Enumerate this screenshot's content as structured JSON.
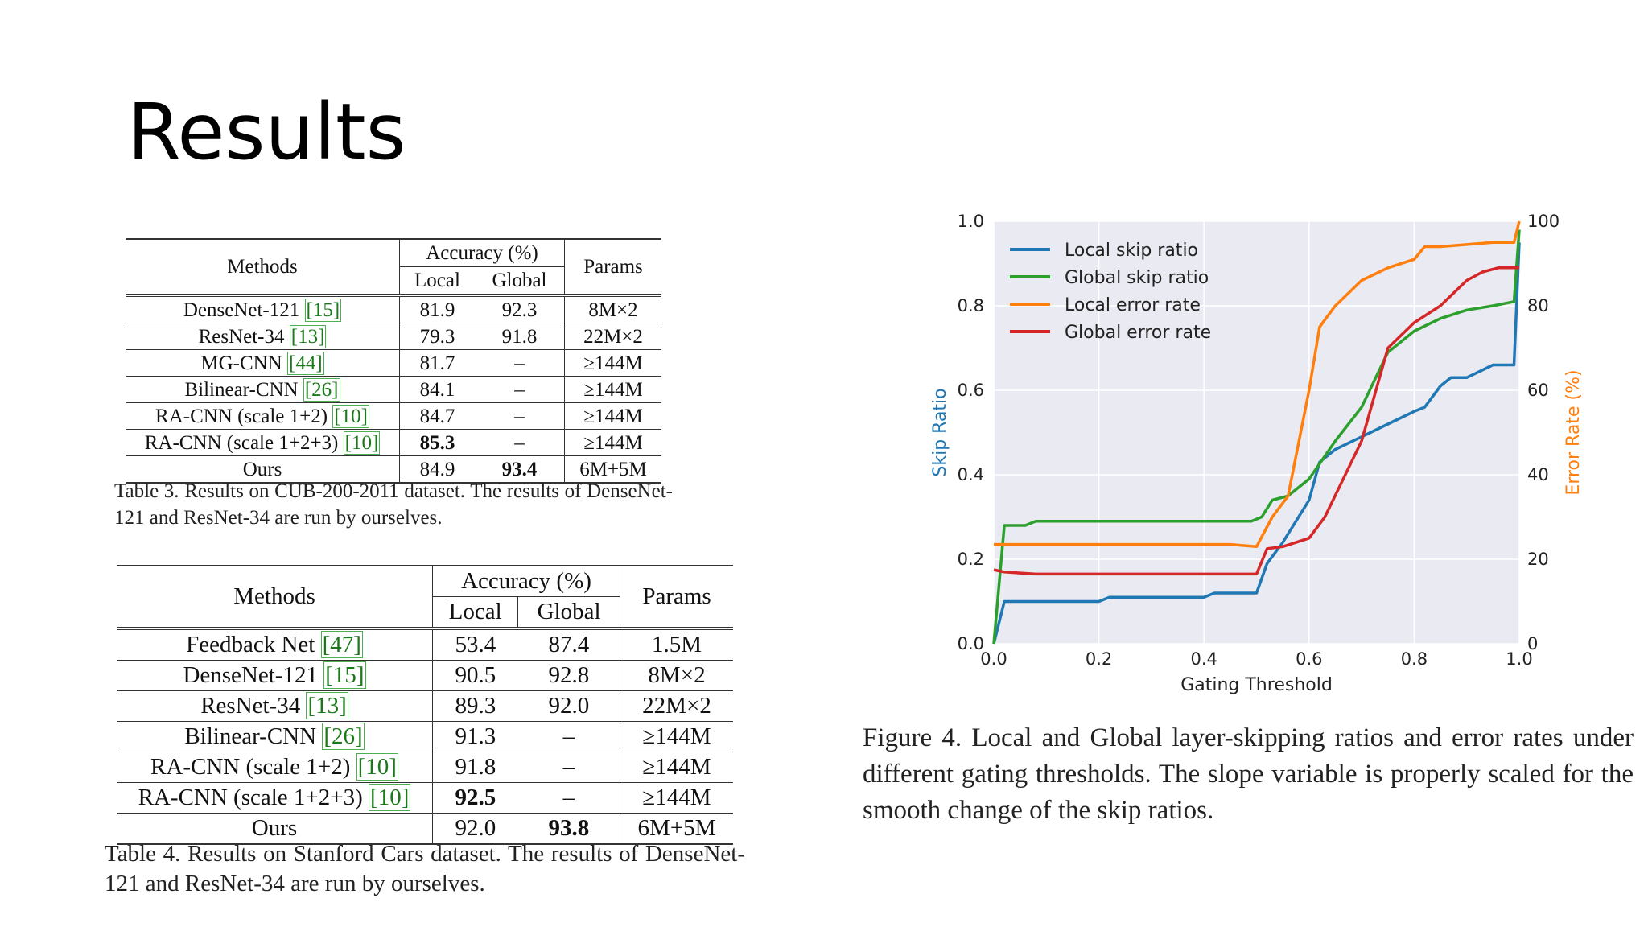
{
  "slide": {
    "title": "Results"
  },
  "table3": {
    "headers": {
      "methods": "Methods",
      "accuracy": "Accuracy (%)",
      "local": "Local",
      "global": "Global",
      "params": "Params"
    },
    "rows": [
      {
        "name": "DenseNet-121",
        "ref": "[15]",
        "local": "81.9",
        "global": "92.3",
        "params": "8M×2"
      },
      {
        "name": "ResNet-34",
        "ref": "[13]",
        "local": "79.3",
        "global": "91.8",
        "params": "22M×2"
      },
      {
        "name": "MG-CNN",
        "ref": "[44]",
        "local": "81.7",
        "global": "–",
        "params": "≥144M"
      },
      {
        "name": "Bilinear-CNN",
        "ref": "[26]",
        "local": "84.1",
        "global": "–",
        "params": "≥144M"
      },
      {
        "name": "RA-CNN (scale 1+2)",
        "ref": "[10]",
        "local": "84.7",
        "global": "–",
        "params": "≥144M"
      },
      {
        "name": "RA-CNN (scale 1+2+3)",
        "ref": "[10]",
        "local": "85.3",
        "global": "–",
        "params": "≥144M"
      },
      {
        "name": "Ours",
        "ref": "",
        "local": "84.9",
        "global": "93.4",
        "params": "6M+5M"
      }
    ],
    "caption": "Table 3. Results on CUB-200-2011 dataset. The results of DenseNet-121 and ResNet-34 are run by ourselves."
  },
  "table4": {
    "headers": {
      "methods": "Methods",
      "accuracy": "Accuracy (%)",
      "local": "Local",
      "global": "Global",
      "params": "Params"
    },
    "rows": [
      {
        "name": "Feedback Net",
        "ref": "[47]",
        "local": "53.4",
        "global": "87.4",
        "params": "1.5M"
      },
      {
        "name": "DenseNet-121",
        "ref": "[15]",
        "local": "90.5",
        "global": "92.8",
        "params": "8M×2"
      },
      {
        "name": "ResNet-34",
        "ref": "[13]",
        "local": "89.3",
        "global": "92.0",
        "params": "22M×2"
      },
      {
        "name": "Bilinear-CNN",
        "ref": "[26]",
        "local": "91.3",
        "global": "–",
        "params": "≥144M"
      },
      {
        "name": "RA-CNN (scale 1+2)",
        "ref": "[10]",
        "local": "91.8",
        "global": "–",
        "params": "≥144M"
      },
      {
        "name": "RA-CNN (scale 1+2+3)",
        "ref": "[10]",
        "local": "92.5",
        "global": "–",
        "params": "≥144M"
      },
      {
        "name": "Ours",
        "ref": "",
        "local": "92.0",
        "global": "93.8",
        "params": "6M+5M"
      }
    ],
    "caption": "Table 4. Results on Stanford Cars dataset. The results of DenseNet-121 and ResNet-34 are run by ourselves."
  },
  "figure": {
    "caption": "Figure 4. Local and Global layer-skipping ratios and error rates under different gating thresholds. The slope variable is properly scaled for the smooth change of the skip ratios."
  },
  "chart_data": {
    "type": "line",
    "xlabel": "Gating Threshold",
    "ylabel": "Skip Ratio",
    "ylabel_right": "Error Rate (%)",
    "xlim": [
      0,
      1
    ],
    "ylim": [
      0,
      1
    ],
    "ylim_right": [
      0,
      100
    ],
    "xticks": [
      "0.0",
      "0.2",
      "0.4",
      "0.6",
      "0.8",
      "1.0"
    ],
    "yticks": [
      "0.0",
      "0.2",
      "0.4",
      "0.6",
      "0.8",
      "1.0"
    ],
    "yticks_right": [
      "0",
      "20",
      "40",
      "60",
      "80",
      "100"
    ],
    "legend_position": "top-left",
    "colors": {
      "local_skip": "#1f77b4",
      "global_skip": "#2ca02c",
      "local_err": "#ff7f0e",
      "global_err": "#d62728",
      "ylabel": "#1f77b4",
      "ylabel_right": "#ff7f0e",
      "background": "#eaeaf2"
    },
    "series": [
      {
        "name": "Local skip ratio",
        "axis": "left",
        "color_key": "local_skip",
        "x": [
          0,
          0.02,
          0.1,
          0.2,
          0.22,
          0.4,
          0.42,
          0.5,
          0.52,
          0.55,
          0.6,
          0.62,
          0.65,
          0.7,
          0.75,
          0.8,
          0.82,
          0.85,
          0.87,
          0.9,
          0.95,
          0.99,
          1.0
        ],
        "y": [
          0,
          0.1,
          0.1,
          0.1,
          0.11,
          0.11,
          0.12,
          0.12,
          0.19,
          0.24,
          0.34,
          0.43,
          0.46,
          0.49,
          0.52,
          0.55,
          0.56,
          0.61,
          0.63,
          0.63,
          0.66,
          0.66,
          0.95
        ]
      },
      {
        "name": "Global skip ratio",
        "axis": "left",
        "color_key": "global_skip",
        "x": [
          0,
          0.02,
          0.06,
          0.08,
          0.2,
          0.4,
          0.49,
          0.51,
          0.53,
          0.56,
          0.6,
          0.65,
          0.7,
          0.75,
          0.8,
          0.85,
          0.9,
          0.95,
          0.99,
          1.0
        ],
        "y": [
          0,
          0.28,
          0.28,
          0.29,
          0.29,
          0.29,
          0.29,
          0.3,
          0.34,
          0.35,
          0.39,
          0.48,
          0.56,
          0.69,
          0.74,
          0.77,
          0.79,
          0.8,
          0.81,
          0.98
        ]
      },
      {
        "name": "Local error rate",
        "axis": "right",
        "color_key": "local_err",
        "x": [
          0,
          0.1,
          0.2,
          0.3,
          0.4,
          0.45,
          0.5,
          0.53,
          0.56,
          0.6,
          0.62,
          0.65,
          0.7,
          0.75,
          0.8,
          0.82,
          0.85,
          0.9,
          0.95,
          0.99,
          1.0
        ],
        "y": [
          23.5,
          23.5,
          23.5,
          23.5,
          23.5,
          23.5,
          23,
          30,
          35,
          60,
          75,
          80,
          86,
          89,
          91,
          94,
          94,
          94.5,
          95,
          95,
          100
        ]
      },
      {
        "name": "Global error rate",
        "axis": "right",
        "color_key": "global_err",
        "x": [
          0,
          0.02,
          0.08,
          0.2,
          0.3,
          0.4,
          0.5,
          0.52,
          0.55,
          0.6,
          0.63,
          0.7,
          0.75,
          0.8,
          0.85,
          0.9,
          0.93,
          0.96,
          0.99,
          1.0
        ],
        "y": [
          17.5,
          17,
          16.5,
          16.5,
          16.5,
          16.5,
          16.5,
          22.5,
          23,
          25,
          30,
          48,
          70,
          76,
          80,
          86,
          88,
          89,
          89,
          89
        ]
      }
    ]
  }
}
